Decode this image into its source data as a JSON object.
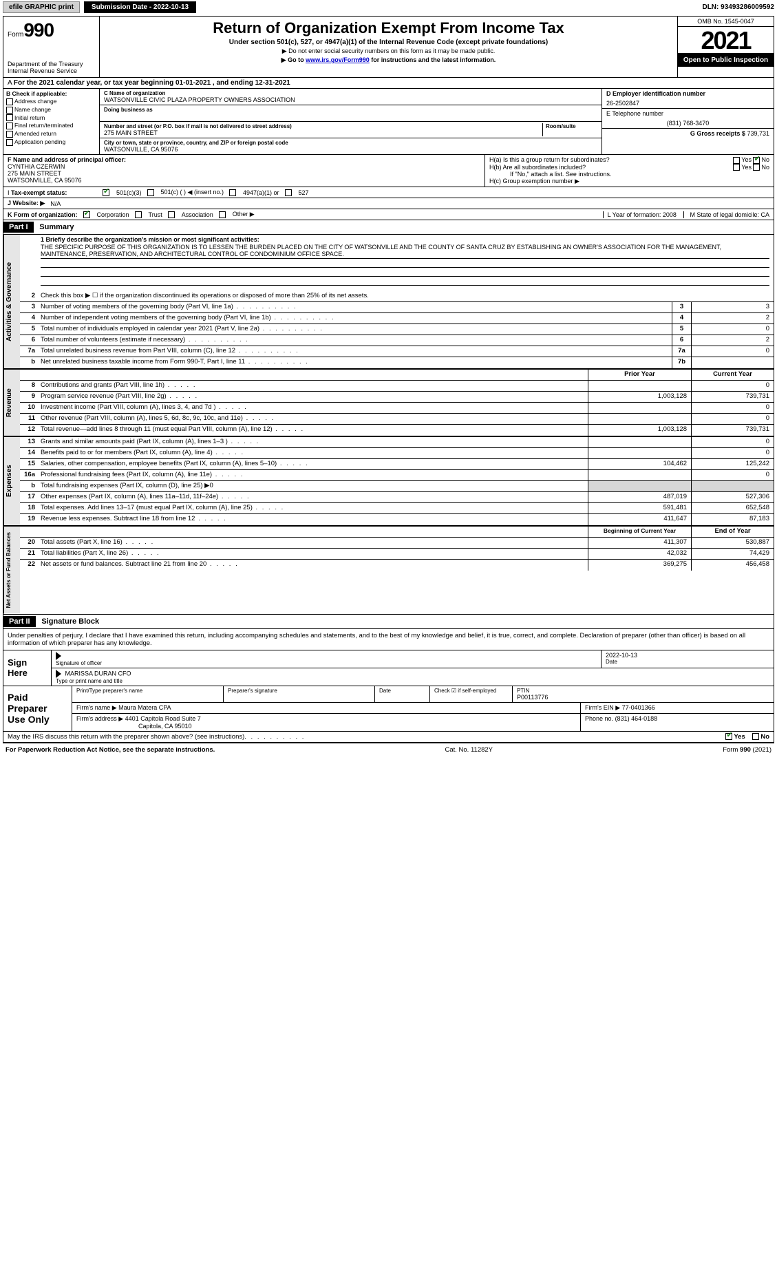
{
  "topbar": {
    "efile": "efile GRAPHIC print",
    "submission": "Submission Date - 2022-10-13",
    "dln": "DLN: 93493286009592"
  },
  "header": {
    "form_word": "Form",
    "form_num": "990",
    "dept": "Department of the Treasury",
    "irs": "Internal Revenue Service",
    "title": "Return of Organization Exempt From Income Tax",
    "sub": "Under section 501(c), 527, or 4947(a)(1) of the Internal Revenue Code (except private foundations)",
    "note1": "▶ Do not enter social security numbers on this form as it may be made public.",
    "note2_pre": "▶ Go to ",
    "note2_link": "www.irs.gov/Form990",
    "note2_post": " for instructions and the latest information.",
    "omb": "OMB No. 1545-0047",
    "year": "2021",
    "open": "Open to Public Inspection"
  },
  "period": "For the 2021 calendar year, or tax year beginning 01-01-2021    , and ending 12-31-2021",
  "colB": {
    "hdr": "B Check if applicable:",
    "opts": [
      "Address change",
      "Name change",
      "Initial return",
      "Final return/terminated",
      "Amended return",
      "Application pending"
    ]
  },
  "colC": {
    "name_lbl": "C Name of organization",
    "name": "WATSONVILLE CIVIC PLAZA PROPERTY OWNERS ASSOCIATION",
    "dba_lbl": "Doing business as",
    "addr_lbl": "Number and street (or P.O. box if mail is not delivered to street address)",
    "room_lbl": "Room/suite",
    "addr": "275 MAIN STREET",
    "city_lbl": "City or town, state or province, country, and ZIP or foreign postal code",
    "city": "WATSONVILLE, CA  95076"
  },
  "colD": {
    "lbl": "D Employer identification number",
    "val": "26-2502847"
  },
  "colE": {
    "lbl": "E Telephone number",
    "val": "(831) 768-3470"
  },
  "colG": {
    "lbl": "G Gross receipts $",
    "val": "739,731"
  },
  "rowF": {
    "lbl": "F  Name and address of principal officer:",
    "name": "CYNTHIA CZERWIN",
    "addr1": "275 MAIN STREET",
    "addr2": "WATSONVILLE, CA  95076"
  },
  "rowH": {
    "a": "H(a)  Is this a group return for subordinates?",
    "b": "H(b)  Are all subordinates included?",
    "b_note": "If \"No,\" attach a list. See instructions.",
    "c": "H(c)  Group exemption number ▶",
    "yes": "Yes",
    "no": "No"
  },
  "taxstatus": {
    "lbl": "Tax-exempt status:",
    "opts": [
      "501(c)(3)",
      "501(c) (  ) ◀ (insert no.)",
      "4947(a)(1) or",
      "527"
    ]
  },
  "website": {
    "lbl": "J   Website: ▶",
    "val": "N/A"
  },
  "korg": {
    "lbl": "K Form of organization:",
    "opts": [
      "Corporation",
      "Trust",
      "Association",
      "Other ▶"
    ],
    "L": "L Year of formation: 2008",
    "M": "M State of legal domicile: CA"
  },
  "part1": {
    "hdr": "Part I",
    "title": "Summary"
  },
  "sections": {
    "gov": "Activities & Governance",
    "rev": "Revenue",
    "exp": "Expenses",
    "net": "Net Assets or Fund Balances"
  },
  "mission": {
    "lbl": "1   Briefly describe the organization's mission or most significant activities:",
    "text": "THE SPECIFIC PURPOSE OF THIS ORGANIZATION IS TO LESSEN THE BURDEN PLACED ON THE CITY OF WATSONVILLE AND THE COUNTY OF SANTA CRUZ BY ESTABLISHING AN OWNER'S ASSOCIATION FOR THE MANAGEMENT, MAINTENANCE, PRESERVATION, AND ARCHITECTURAL CONTROL OF CONDOMINIUM OFFICE SPACE."
  },
  "lines_gov": [
    {
      "n": "2",
      "d": "Check this box ▶ ☐  if the organization discontinued its operations or disposed of more than 25% of its net assets."
    },
    {
      "n": "3",
      "d": "Number of voting members of the governing body (Part VI, line 1a)",
      "box": "3",
      "v": "3"
    },
    {
      "n": "4",
      "d": "Number of independent voting members of the governing body (Part VI, line 1b)",
      "box": "4",
      "v": "2"
    },
    {
      "n": "5",
      "d": "Total number of individuals employed in calendar year 2021 (Part V, line 2a)",
      "box": "5",
      "v": "0"
    },
    {
      "n": "6",
      "d": "Total number of volunteers (estimate if necessary)",
      "box": "6",
      "v": "2"
    },
    {
      "n": "7a",
      "d": "Total unrelated business revenue from Part VIII, column (C), line 12",
      "box": "7a",
      "v": "0"
    },
    {
      "n": "b",
      "d": "Net unrelated business taxable income from Form 990-T, Part I, line 11",
      "box": "7b",
      "v": ""
    }
  ],
  "col_hdrs": {
    "prior": "Prior Year",
    "current": "Current Year"
  },
  "lines_rev": [
    {
      "n": "8",
      "d": "Contributions and grants (Part VIII, line 1h)",
      "p": "",
      "c": "0"
    },
    {
      "n": "9",
      "d": "Program service revenue (Part VIII, line 2g)",
      "p": "1,003,128",
      "c": "739,731"
    },
    {
      "n": "10",
      "d": "Investment income (Part VIII, column (A), lines 3, 4, and 7d )",
      "p": "",
      "c": "0"
    },
    {
      "n": "11",
      "d": "Other revenue (Part VIII, column (A), lines 5, 6d, 8c, 9c, 10c, and 11e)",
      "p": "",
      "c": "0"
    },
    {
      "n": "12",
      "d": "Total revenue—add lines 8 through 11 (must equal Part VIII, column (A), line 12)",
      "p": "1,003,128",
      "c": "739,731"
    }
  ],
  "lines_exp": [
    {
      "n": "13",
      "d": "Grants and similar amounts paid (Part IX, column (A), lines 1–3 )",
      "p": "",
      "c": "0"
    },
    {
      "n": "14",
      "d": "Benefits paid to or for members (Part IX, column (A), line 4)",
      "p": "",
      "c": "0"
    },
    {
      "n": "15",
      "d": "Salaries, other compensation, employee benefits (Part IX, column (A), lines 5–10)",
      "p": "104,462",
      "c": "125,242"
    },
    {
      "n": "16a",
      "d": "Professional fundraising fees (Part IX, column (A), line 11e)",
      "p": "",
      "c": "0"
    },
    {
      "n": "b",
      "d": "Total fundraising expenses (Part IX, column (D), line 25) ▶0",
      "gray": true
    },
    {
      "n": "17",
      "d": "Other expenses (Part IX, column (A), lines 11a–11d, 11f–24e)",
      "p": "487,019",
      "c": "527,306"
    },
    {
      "n": "18",
      "d": "Total expenses. Add lines 13–17 (must equal Part IX, column (A), line 25)",
      "p": "591,481",
      "c": "652,548"
    },
    {
      "n": "19",
      "d": "Revenue less expenses. Subtract line 18 from line 12",
      "p": "411,647",
      "c": "87,183"
    }
  ],
  "net_hdrs": {
    "beg": "Beginning of Current Year",
    "end": "End of Year"
  },
  "lines_net": [
    {
      "n": "20",
      "d": "Total assets (Part X, line 16)",
      "p": "411,307",
      "c": "530,887"
    },
    {
      "n": "21",
      "d": "Total liabilities (Part X, line 26)",
      "p": "42,032",
      "c": "74,429"
    },
    {
      "n": "22",
      "d": "Net assets or fund balances. Subtract line 21 from line 20",
      "p": "369,275",
      "c": "456,458"
    }
  ],
  "part2": {
    "hdr": "Part II",
    "title": "Signature Block"
  },
  "sig": {
    "decl": "Under penalties of perjury, I declare that I have examined this return, including accompanying schedules and statements, and to the best of my knowledge and belief, it is true, correct, and complete. Declaration of preparer (other than officer) is based on all information of which preparer has any knowledge.",
    "sign_here": "Sign Here",
    "sig_officer": "Signature of officer",
    "date": "Date",
    "sig_date": "2022-10-13",
    "name_title": "MARISSA DURAN  CFO",
    "type_name": "Type or print name and title"
  },
  "paid": {
    "hdr": "Paid Preparer Use Only",
    "print_name": "Print/Type preparer's name",
    "prep_sig": "Preparer's signature",
    "date": "Date",
    "check_self": "Check ☑ if self-employed",
    "ptin_lbl": "PTIN",
    "ptin": "P00113776",
    "firm_name_lbl": "Firm's name    ▶",
    "firm_name": "Maura Matera CPA",
    "firm_ein_lbl": "Firm's EIN ▶",
    "firm_ein": "77-0401366",
    "firm_addr_lbl": "Firm's address ▶",
    "firm_addr1": "4401 Capitola Road Suite 7",
    "firm_addr2": "Capitola, CA  95010",
    "phone_lbl": "Phone no.",
    "phone": "(831) 464-0188"
  },
  "may_discuss": "May the IRS discuss this return with the preparer shown above? (see instructions)",
  "footer": {
    "left": "For Paperwork Reduction Act Notice, see the separate instructions.",
    "mid": "Cat. No. 11282Y",
    "right": "Form 990 (2021)"
  }
}
